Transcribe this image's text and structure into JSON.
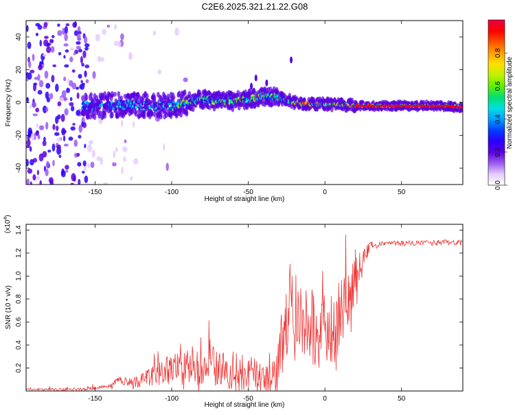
{
  "figure": {
    "title": "C2E6.2025.321.21.22.G08"
  },
  "chart_data": [
    {
      "type": "heatmap",
      "name": "spectrogram",
      "xlabel": "Height of straight line (km)",
      "ylabel": "Frequency (Hz)",
      "xlim": [
        -195,
        90
      ],
      "ylim": [
        -50,
        50
      ],
      "xticks": [
        -150,
        -100,
        -50,
        0,
        50
      ],
      "yticks": [
        -40,
        -20,
        0,
        20,
        40
      ],
      "ridge": {
        "description_points_x": [
          -150,
          -130,
          -110,
          -100,
          -90,
          -80,
          -70,
          -60,
          -50,
          -40,
          -30,
          -20,
          -10,
          0,
          10,
          20,
          40,
          60,
          80,
          90
        ],
        "description_points_y": [
          -2,
          -1.5,
          -2,
          -2,
          0,
          2,
          1,
          1,
          2,
          4,
          3,
          0,
          -1,
          -1,
          -1,
          -2,
          -2,
          -2,
          -2,
          -3
        ]
      },
      "colorbar": {
        "label": "Normalized spectral amplitude",
        "range": [
          0.0,
          1.0
        ],
        "ticks": [
          "0.0",
          "0.2",
          "0.4",
          "0.6",
          "0.8"
        ],
        "tick_values": [
          0.0,
          0.2,
          0.4,
          0.6,
          0.8
        ],
        "colors": [
          "#ffffff",
          "#e6ccff",
          "#9a5cf0",
          "#5a00e0",
          "#2a00ff",
          "#0040ff",
          "#00a0ff",
          "#00e0e0",
          "#00e070",
          "#60f000",
          "#c0f000",
          "#ffe000",
          "#ffa000",
          "#ff5000",
          "#ff0000",
          "#e80040"
        ]
      }
    },
    {
      "type": "line",
      "name": "snr",
      "xlabel": "Height of straight line (km)",
      "ylabel": "SNR (10 * v/v)",
      "multiplier_label": "(x10",
      "multiplier_exp": "4",
      "multiplier_close": ")",
      "xlim": [
        -195,
        90
      ],
      "ylim": [
        0,
        1.45
      ],
      "xticks": [
        -150,
        -100,
        -50,
        0,
        50
      ],
      "yticks": [
        0.2,
        0.4,
        0.6,
        0.8,
        1.0,
        1.2,
        1.4
      ],
      "ytick_labels": [
        "0.2",
        "0.4",
        "0.6",
        "0.8",
        "1.0",
        "1.2",
        "1.4"
      ],
      "color": "#ee3333",
      "envelope_x": [
        -195,
        -170,
        -155,
        -140,
        -135,
        -125,
        -110,
        -100,
        -90,
        -80,
        -75,
        -70,
        -60,
        -50,
        -40,
        -33,
        -28,
        -22,
        -15,
        -10,
        -5,
        0,
        5,
        10,
        15,
        20,
        25,
        30,
        40,
        50,
        60,
        70,
        80,
        90
      ],
      "envelope_y": [
        0.02,
        0.02,
        0.03,
        0.05,
        0.12,
        0.1,
        0.2,
        0.28,
        0.3,
        0.32,
        0.35,
        0.3,
        0.28,
        0.25,
        0.22,
        0.2,
        0.6,
        0.95,
        0.85,
        0.8,
        0.75,
        0.7,
        0.75,
        0.85,
        0.95,
        1.1,
        1.22,
        1.28,
        1.3,
        1.3,
        1.3,
        1.3,
        1.31,
        1.3
      ],
      "noise_amp_x": [
        -195,
        -140,
        -120,
        -100,
        -60,
        -35,
        -30,
        0,
        15,
        25,
        35,
        90
      ],
      "noise_amp_y": [
        0.01,
        0.02,
        0.08,
        0.18,
        0.22,
        0.18,
        0.35,
        0.45,
        0.35,
        0.1,
        0.03,
        0.03
      ]
    }
  ]
}
